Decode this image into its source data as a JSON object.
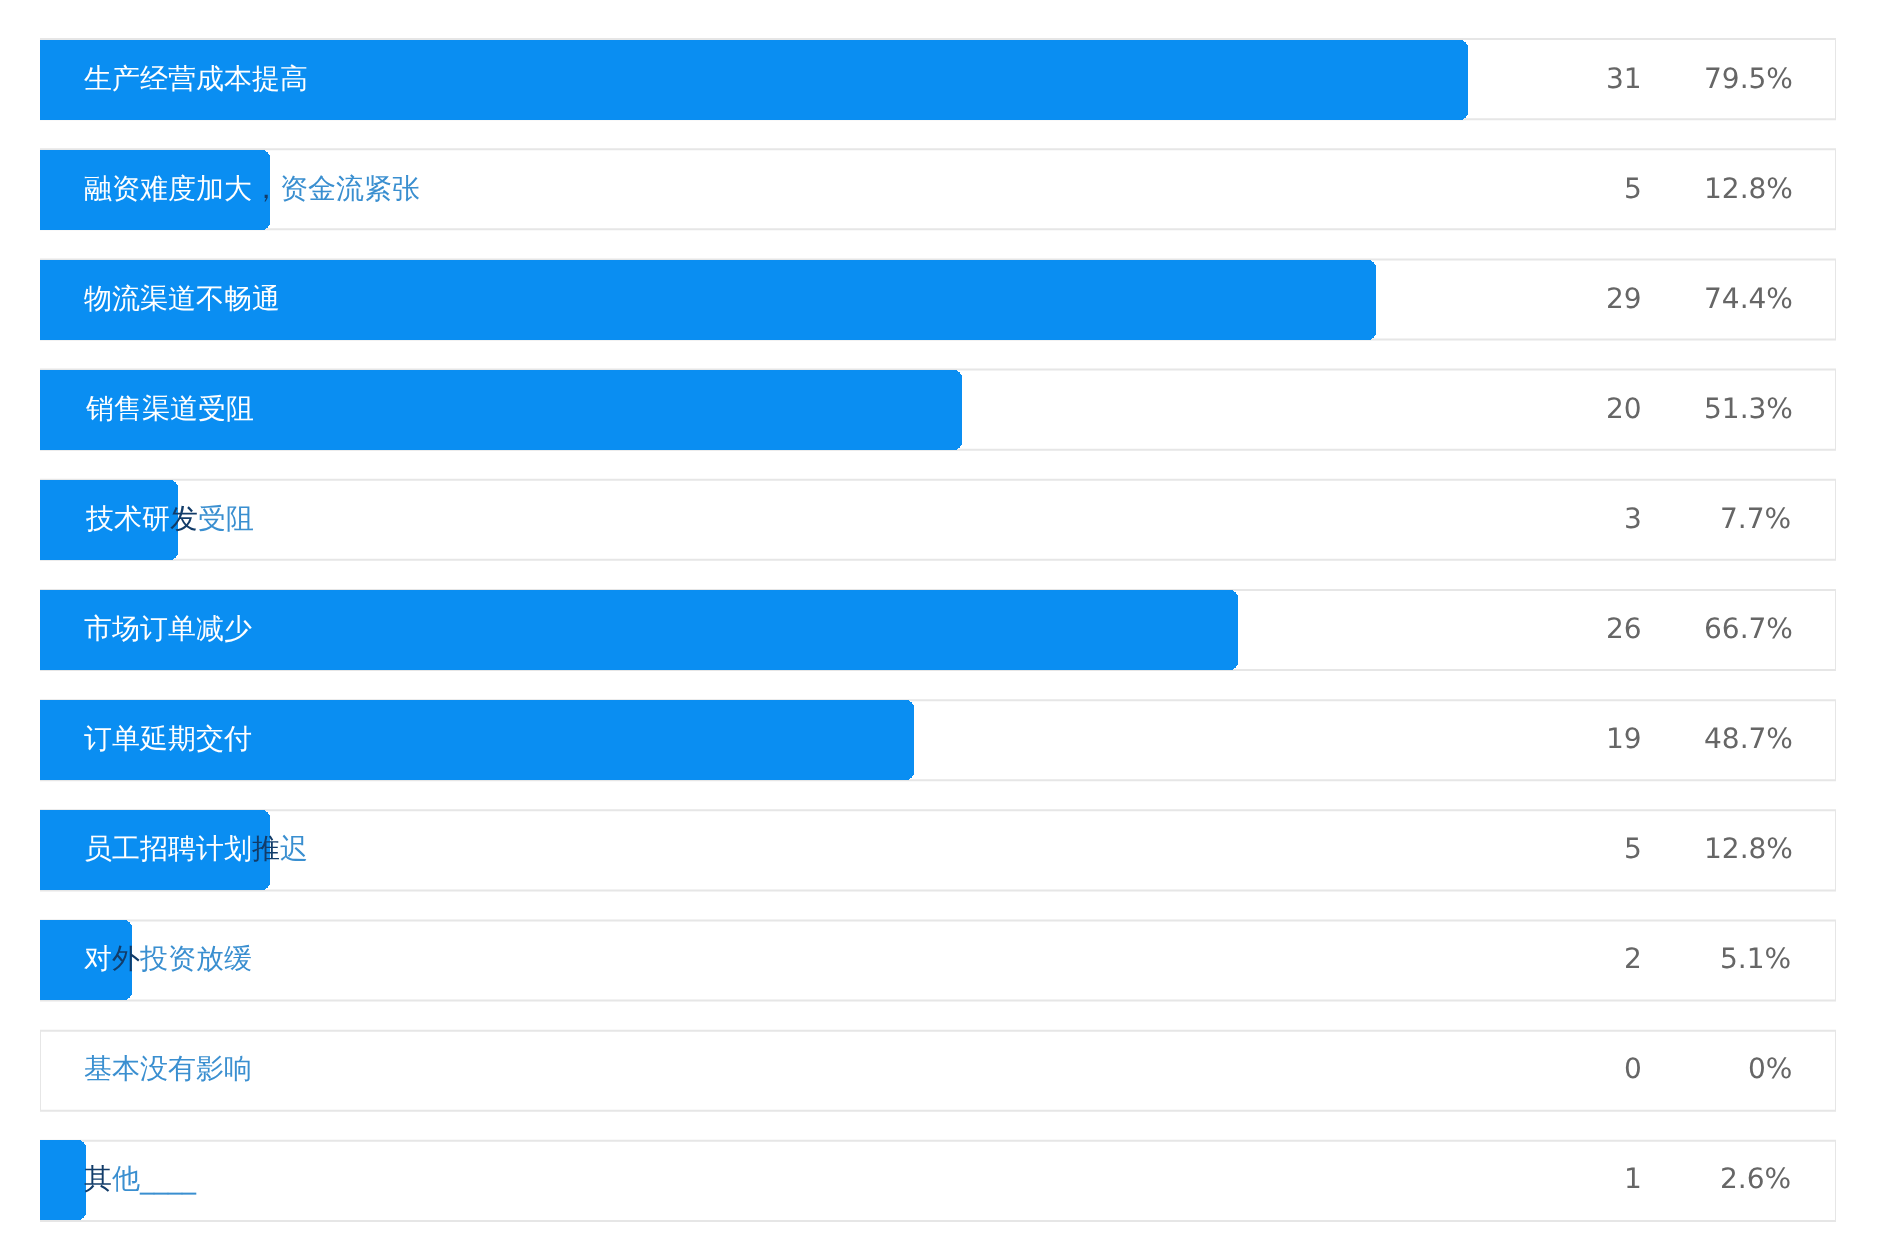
{
  "chart_data": {
    "type": "bar",
    "orientation": "horizontal",
    "tick_labels": "y",
    "categories": [
      "生产经营成本提高",
      "融资难度加大，资金流紧张",
      "物流渠道不畅通",
      "销售渠道受阻",
      "技术研发受阻",
      "市场订单减少",
      "订单延期交付",
      "员工招聘计划推迟",
      "对外投资放缓",
      "基本没有影响",
      "其他____"
    ],
    "values": [
      79.5,
      12.8,
      74.4,
      51.3,
      7.7,
      66.7,
      48.7,
      12.8,
      5.1,
      0,
      2.6
    ],
    "value_labels": [
      "79.5%",
      "12.8%",
      "74.4%",
      "51.3%",
      "7.7%",
      "66.7%",
      "48.7%",
      "12.8%",
      "5.1%",
      "0%",
      "2.6%"
    ],
    "color": "#0a8ef2",
    "xlim": [
      0,
      100
    ],
    "annotations": [
      "31",
      "5",
      "29",
      "20",
      "3",
      "26",
      "19",
      "5",
      "2",
      "0",
      "1"
    ]
  }
}
